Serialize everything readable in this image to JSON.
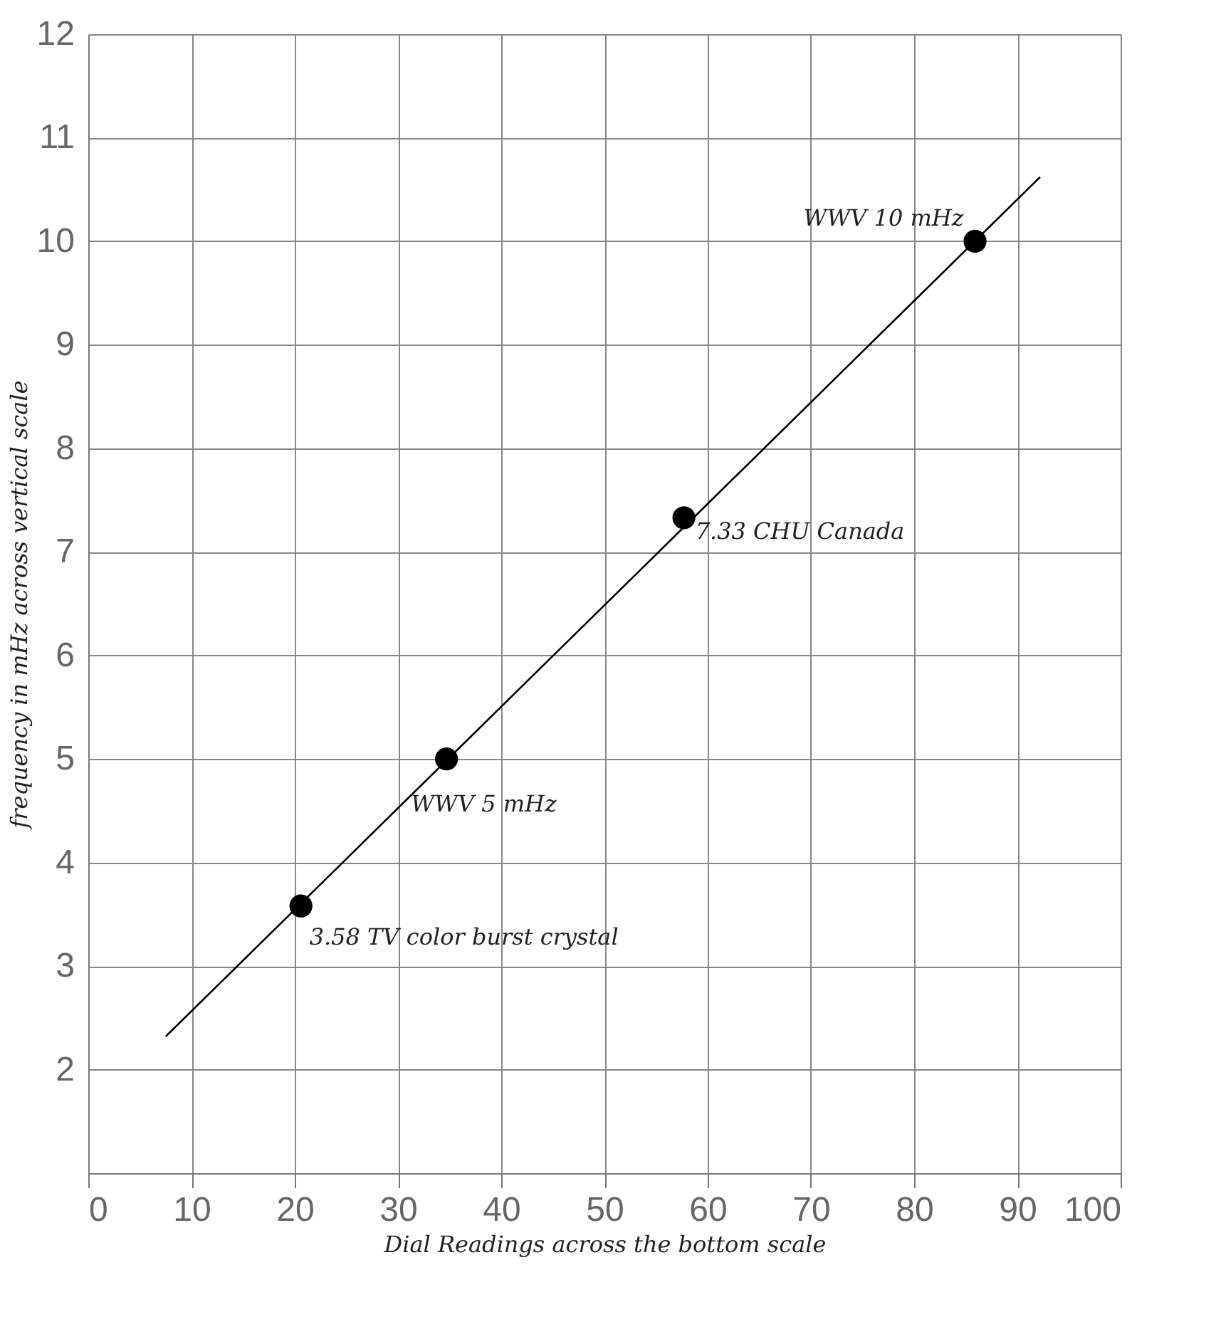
{
  "chart_data": {
    "type": "scatter",
    "xlabel": "Dial Readings across the bottom scale",
    "ylabel": "frequency in mHz across vertical scale",
    "x": [
      20.6,
      34.7,
      57.7,
      85.9
    ],
    "series": [
      {
        "type": "scatter",
        "color": "#000000",
        "marker": "circle",
        "values": [
          3.58,
          5,
          7.33,
          10
        ]
      },
      {
        "type": "line",
        "color": "#000000",
        "x": [
          7.5,
          92.2
        ],
        "values": [
          2.32,
          10.62
        ]
      }
    ],
    "xlim": [
      0,
      100
    ],
    "xticks": [
      0,
      10,
      20,
      30,
      40,
      50,
      60,
      70,
      80,
      90,
      100
    ],
    "ylim": [
      1,
      12
    ],
    "yticks": [
      2,
      3,
      4,
      5,
      6,
      7,
      8,
      9,
      10,
      11,
      12
    ],
    "grid": true,
    "annotations": [
      {
        "text": "3.58 TV color burst crystal",
        "x": 20.6,
        "y": 3.58
      },
      {
        "text": "WWV 5 mHz",
        "x": 34.7,
        "y": 5
      },
      {
        "text": "7.33 CHU Canada",
        "x": 57.7,
        "y": 7.33
      },
      {
        "text": "WWV 10 mHz",
        "x": 85.9,
        "y": 10
      }
    ]
  }
}
